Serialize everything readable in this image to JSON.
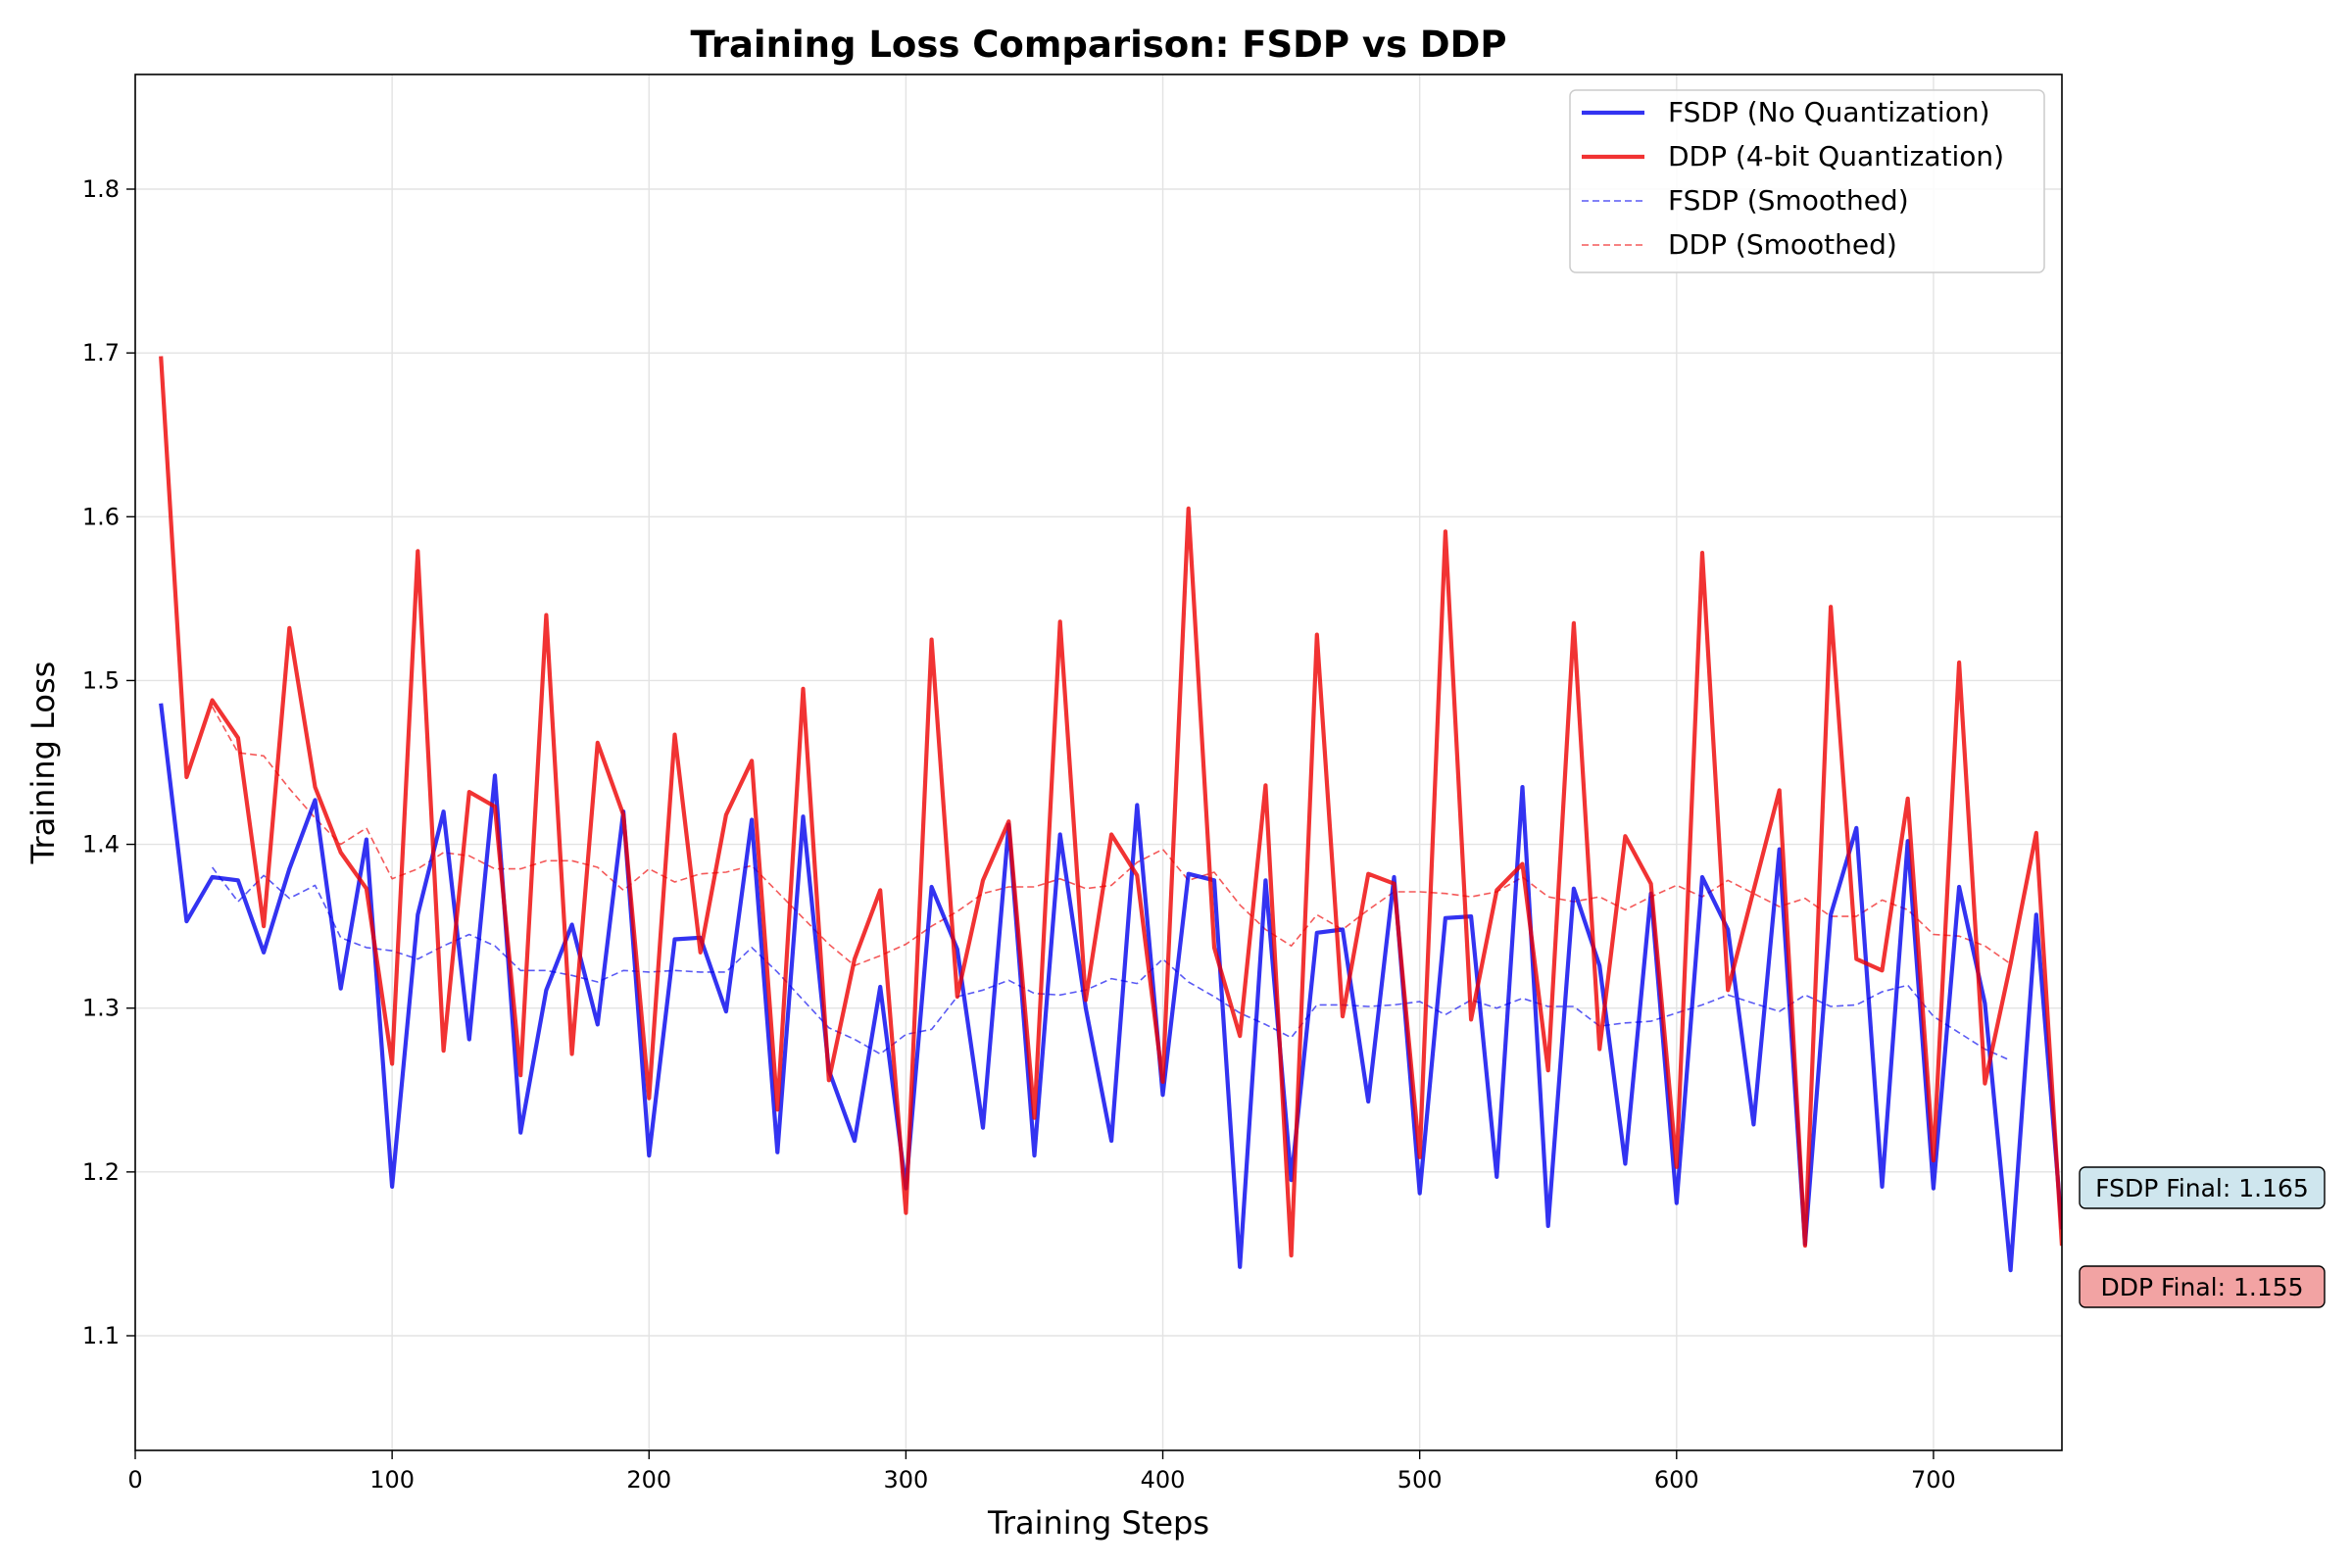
{
  "chart_data": {
    "type": "line",
    "title": "Training Loss Comparison: FSDP vs DDP",
    "xlabel": "Training Steps",
    "ylabel": "Training Loss",
    "xlim": [
      0,
      750
    ],
    "ylim": [
      1.03,
      1.87
    ],
    "xticks": [
      0,
      100,
      200,
      300,
      400,
      500,
      600,
      700
    ],
    "yticks": [
      1.1,
      1.2,
      1.3,
      1.4,
      1.5,
      1.6,
      1.7,
      1.8
    ],
    "grid": true,
    "legend": "top-right",
    "x": [
      10,
      20,
      30,
      40,
      50,
      60,
      70,
      80,
      90,
      100,
      110,
      120,
      130,
      140,
      150,
      160,
      170,
      180,
      190,
      200,
      210,
      220,
      230,
      240,
      250,
      260,
      270,
      280,
      290,
      300,
      310,
      320,
      330,
      340,
      350,
      360,
      370,
      380,
      390,
      400,
      410,
      420,
      430,
      440,
      450,
      460,
      470,
      480,
      490,
      500,
      510,
      520,
      530,
      540,
      550,
      560,
      570,
      580,
      590,
      600,
      610,
      620,
      630,
      640,
      650,
      660,
      670,
      680,
      690,
      700,
      710,
      720,
      730,
      740,
      750
    ],
    "series": [
      {
        "name": "FSDP (No Quantization)",
        "color": "#0000ee",
        "style": "solid",
        "values": [
          1.486,
          1.353,
          1.38,
          1.378,
          1.334,
          1.385,
          1.427,
          1.312,
          1.403,
          1.191,
          1.357,
          1.42,
          1.281,
          1.442,
          1.224,
          1.311,
          1.351,
          1.29,
          1.42,
          1.21,
          1.342,
          1.343,
          1.298,
          1.415,
          1.212,
          1.417,
          1.262,
          1.219,
          1.313,
          1.19,
          1.374,
          1.336,
          1.227,
          1.412,
          1.21,
          1.406,
          1.3,
          1.219,
          1.424,
          1.247,
          1.382,
          1.378,
          1.142,
          1.378,
          1.195,
          1.346,
          1.348,
          1.243,
          1.38,
          1.187,
          1.355,
          1.356,
          1.197,
          1.435,
          1.167,
          1.373,
          1.326,
          1.205,
          1.37,
          1.181,
          1.38,
          1.348,
          1.229,
          1.397,
          1.156,
          1.357,
          1.41,
          1.191,
          1.402,
          1.19,
          1.374,
          1.303,
          1.14,
          1.357,
          1.165
        ]
      },
      {
        "name": "DDP (4-bit Quantization)",
        "color": "#ee0000",
        "style": "solid",
        "values": [
          1.698,
          1.441,
          1.488,
          1.465,
          1.35,
          1.532,
          1.435,
          1.395,
          1.373,
          1.266,
          1.579,
          1.274,
          1.432,
          1.423,
          1.259,
          1.54,
          1.272,
          1.462,
          1.418,
          1.245,
          1.467,
          1.334,
          1.418,
          1.451,
          1.238,
          1.495,
          1.256,
          1.33,
          1.372,
          1.175,
          1.525,
          1.307,
          1.378,
          1.414,
          1.233,
          1.536,
          1.305,
          1.406,
          1.381,
          1.255,
          1.605,
          1.337,
          1.283,
          1.436,
          1.149,
          1.528,
          1.295,
          1.382,
          1.376,
          1.209,
          1.591,
          1.293,
          1.372,
          1.388,
          1.262,
          1.535,
          1.275,
          1.405,
          1.376,
          1.203,
          1.578,
          1.311,
          1.372,
          1.433,
          1.155,
          1.545,
          1.33,
          1.323,
          1.428,
          1.207,
          1.511,
          1.254,
          1.327,
          1.407,
          1.155
        ]
      },
      {
        "name": "FSDP (Smoothed)",
        "color": "#0000ee",
        "style": "dashed",
        "values": [
          null,
          null,
          1.386,
          1.365,
          1.381,
          1.367,
          1.375,
          1.343,
          1.337,
          1.335,
          1.33,
          1.338,
          1.345,
          1.338,
          1.323,
          1.323,
          1.32,
          1.316,
          1.323,
          1.322,
          1.323,
          1.322,
          1.322,
          1.337,
          1.322,
          1.305,
          1.288,
          1.281,
          1.272,
          1.284,
          1.287,
          1.307,
          1.311,
          1.317,
          1.309,
          1.308,
          1.311,
          1.318,
          1.315,
          1.33,
          1.316,
          1.307,
          1.297,
          1.29,
          1.282,
          1.302,
          1.302,
          1.301,
          1.302,
          1.304,
          1.296,
          1.305,
          1.3,
          1.306,
          1.301,
          1.301,
          1.289,
          1.291,
          1.292,
          1.297,
          1.302,
          1.308,
          1.303,
          1.298,
          1.308,
          1.301,
          1.302,
          1.31,
          1.314,
          1.295,
          1.285,
          1.275,
          1.268,
          null,
          null
        ]
      },
      {
        "name": "DDP (Smoothed)",
        "color": "#ee0000",
        "style": "dashed",
        "values": [
          null,
          null,
          1.484,
          1.456,
          1.454,
          1.434,
          1.416,
          1.4,
          1.41,
          1.379,
          1.385,
          1.395,
          1.393,
          1.385,
          1.385,
          1.39,
          1.39,
          1.386,
          1.372,
          1.385,
          1.377,
          1.382,
          1.383,
          1.387,
          1.371,
          1.355,
          1.339,
          1.326,
          1.332,
          1.339,
          1.35,
          1.359,
          1.37,
          1.374,
          1.374,
          1.379,
          1.373,
          1.375,
          1.389,
          1.397,
          1.378,
          1.383,
          1.363,
          1.348,
          1.338,
          1.357,
          1.348,
          1.36,
          1.371,
          1.371,
          1.37,
          1.368,
          1.371,
          1.38,
          1.368,
          1.365,
          1.368,
          1.36,
          1.368,
          1.375,
          1.368,
          1.378,
          1.37,
          1.362,
          1.367,
          1.356,
          1.356,
          1.366,
          1.36,
          1.345,
          1.344,
          1.338,
          1.327,
          null,
          null
        ]
      }
    ],
    "annotations": [
      {
        "text": "FSDP Final: 1.165",
        "fill": "#cfe6ee"
      },
      {
        "text": "DDP Final: 1.155",
        "fill": "#f2a3a3"
      }
    ]
  }
}
